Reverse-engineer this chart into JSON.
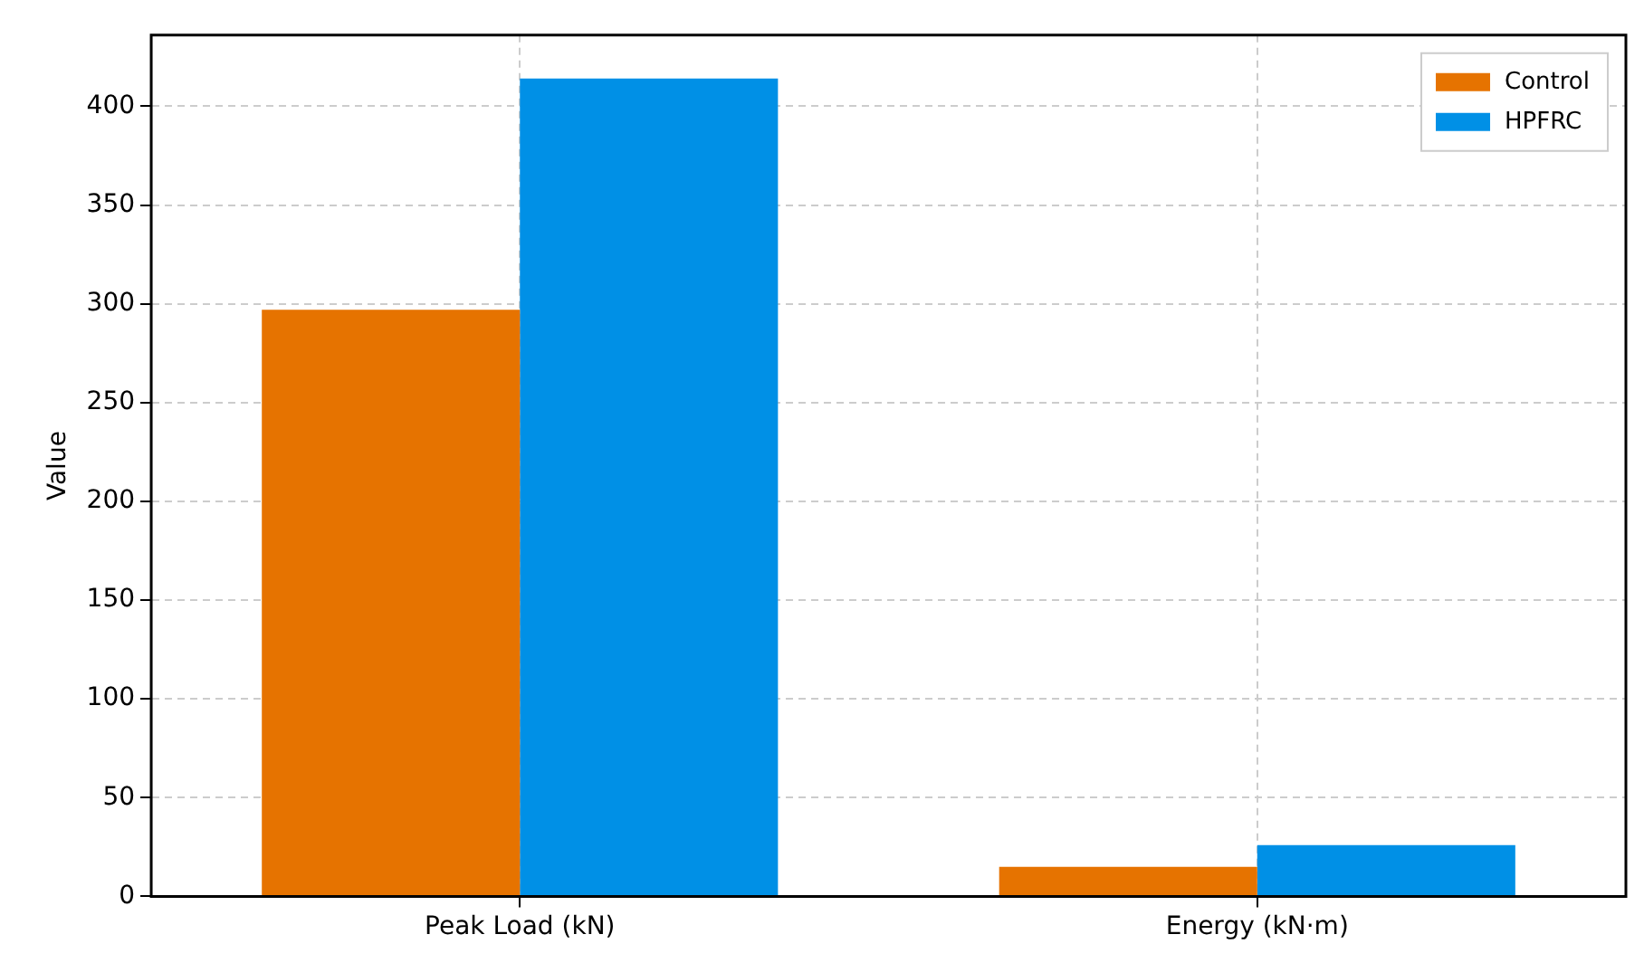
{
  "chart_data": {
    "type": "bar",
    "ylabel": "Value",
    "categories": [
      "Peak Load (kN)",
      "Energy (kN·m)"
    ],
    "series": [
      {
        "name": "Control",
        "color": "#e67300",
        "values": [
          297,
          15
        ]
      },
      {
        "name": "HPFRC",
        "color": "#0090e6",
        "values": [
          414,
          26
        ]
      }
    ],
    "ylim": [
      0,
      436
    ],
    "yticks": [
      0,
      50,
      100,
      150,
      200,
      250,
      300,
      350,
      400
    ],
    "grid": true,
    "legend": "top right"
  }
}
